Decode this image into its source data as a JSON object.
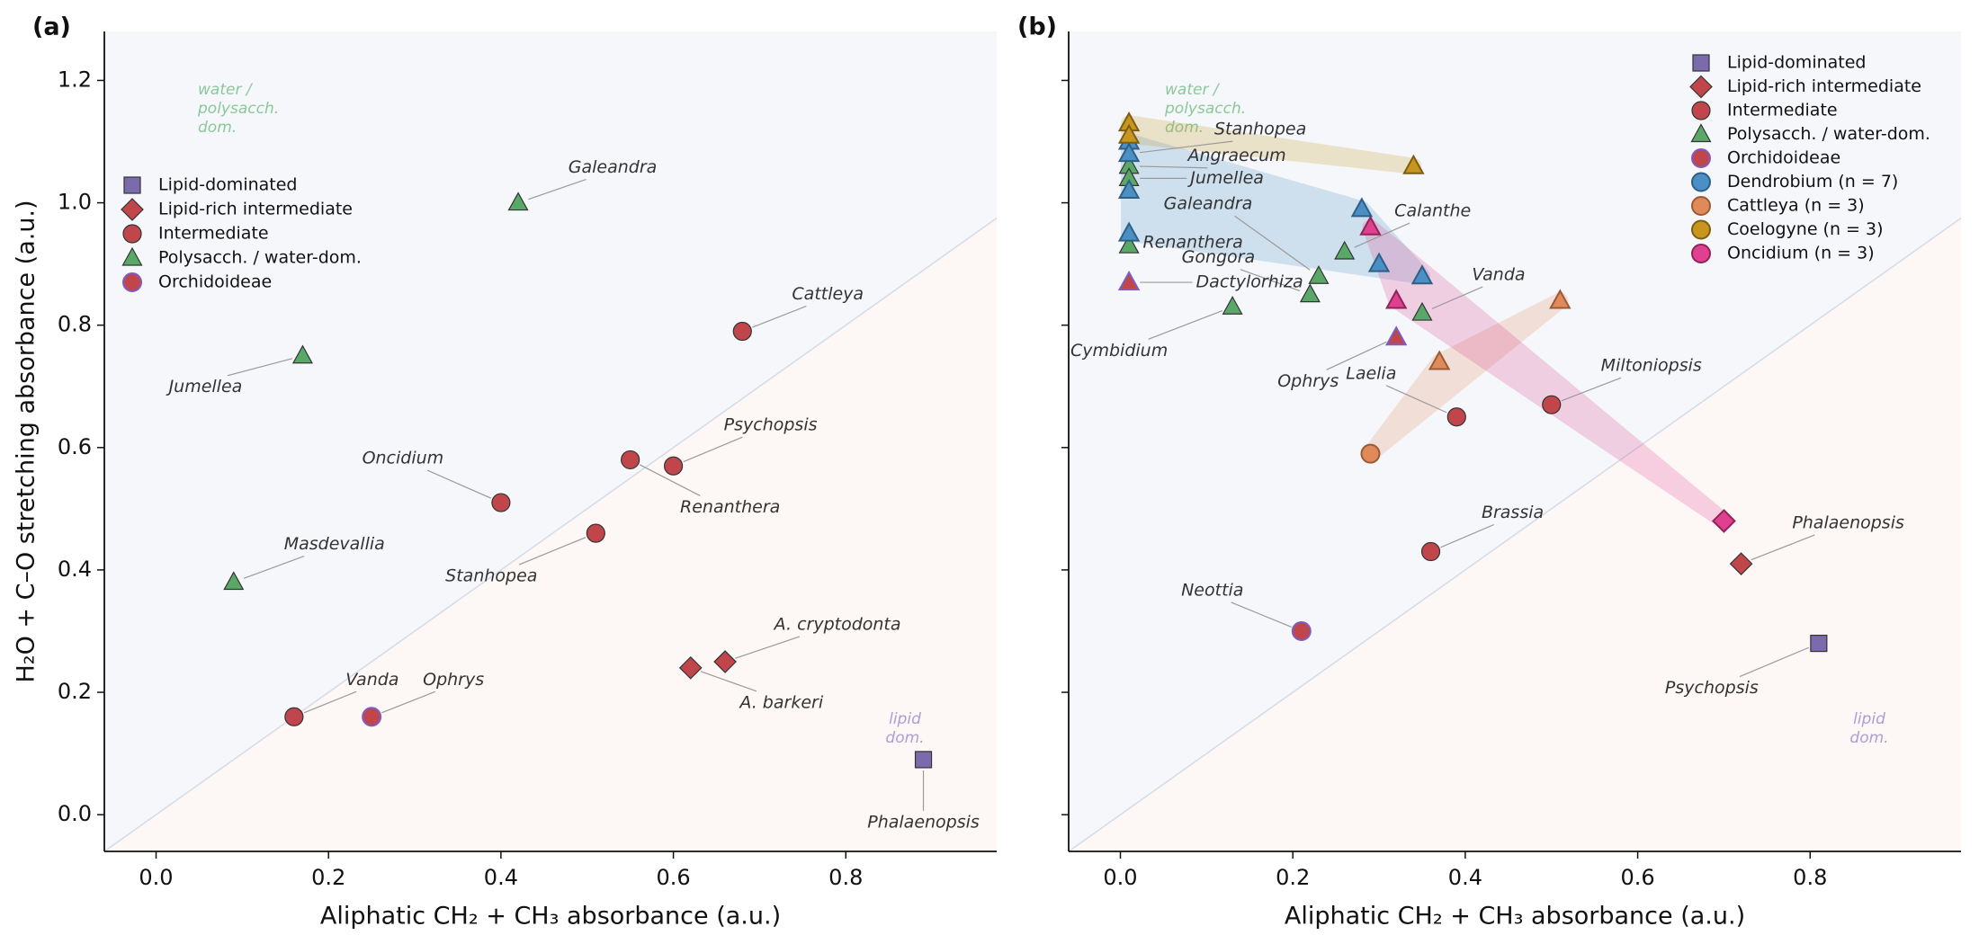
{
  "chart_data": [
    {
      "type": "scatter",
      "panel_label": "(a)",
      "xlabel": "Aliphatic CH₂ + CH₃  absorbance (a.u.)",
      "ylabel": "H₂O + C–O stretching  absorbance (a.u.)",
      "xlim": [
        -0.06,
        0.975
      ],
      "ylim": [
        -0.06,
        1.28
      ],
      "xticks": [
        {
          "value": 0,
          "label": "0.0"
        },
        0.2,
        0.4,
        0.6,
        0.8
      ],
      "yticks": [
        {
          "value": 0,
          "label": "0.0"
        },
        0.2,
        0.4,
        0.6,
        0.8,
        {
          "value": 1,
          "label": "1.0"
        },
        1.2
      ],
      "show_ytick_labels": true,
      "legend": "upper left",
      "annotations": [
        {
          "lines": [
            "water /",
            "polysacch.",
            "dom."
          ],
          "color": "#8cc79a"
        },
        {
          "lines": [
            "lipid",
            "dom."
          ],
          "color": "#ab9fd6"
        }
      ],
      "series": [
        {
          "name": "Lipid-dominated",
          "color": "#7b6bad",
          "edge": "#333333",
          "marker": "square",
          "x": [
            0.89
          ],
          "values": [
            0.09
          ],
          "labels": [
            "Phalaenopsis"
          ]
        },
        {
          "name": "Lipid-rich intermediate",
          "color": "#c0464b",
          "edge": "#333333",
          "marker": "diamond",
          "x": [
            0.66,
            0.62
          ],
          "values": [
            0.25,
            0.24
          ],
          "labels": [
            "A. cryptodonta",
            "A. barkeri"
          ]
        },
        {
          "name": "Intermediate",
          "color": "#c0464b",
          "edge": "#333333",
          "marker": "circle",
          "x": [
            0.68,
            0.6,
            0.55,
            0.4,
            0.51,
            0.16
          ],
          "values": [
            0.79,
            0.57,
            0.58,
            0.51,
            0.46,
            0.16
          ],
          "labels": [
            "Cattleya",
            "Psychopsis",
            "Renanthera",
            "Oncidium",
            "Stanhopea",
            "Vanda"
          ]
        },
        {
          "name": "Polysacch. / water-dom.",
          "color": "#5aa867",
          "edge": "#333333",
          "marker": "triangle",
          "x": [
            0.42,
            0.17,
            0.09
          ],
          "values": [
            1.0,
            0.75,
            0.38
          ],
          "labels": [
            "Galeandra",
            "Jumellea",
            "Masdevallia"
          ]
        },
        {
          "name": "Orchidoideae",
          "color": "#c0464b",
          "edge": "#7d5cc6",
          "marker": "circle",
          "x": [
            0.25
          ],
          "values": [
            0.16
          ],
          "labels": [
            "Ophrys"
          ]
        }
      ]
    },
    {
      "type": "scatter",
      "panel_label": "(b)",
      "xlabel": "Aliphatic CH₂ + CH₃  absorbance (a.u.)",
      "xlim": [
        -0.06,
        0.975
      ],
      "ylim": [
        -0.06,
        1.28
      ],
      "xticks": [
        {
          "value": 0,
          "label": "0.0"
        },
        0.2,
        0.4,
        0.6,
        0.8
      ],
      "yticks": [
        0,
        0.2,
        0.4,
        0.6,
        0.8,
        1,
        1.2
      ],
      "show_ytick_labels": false,
      "legend": "upper right",
      "annotations": [
        {
          "lines": [
            "water /",
            "polysacch.",
            "dom."
          ],
          "color": "#8cc79a"
        },
        {
          "lines": [
            "lipid",
            "dom."
          ],
          "color": "#ab9fd6"
        }
      ],
      "series": [
        {
          "name": "Lipid-dominated",
          "color": "#7b6bad",
          "edge": "#333333",
          "marker": "square",
          "x": [
            0.81
          ],
          "values": [
            0.28
          ],
          "labels": [
            "Psychopsis"
          ]
        },
        {
          "name": "Lipid-rich intermediate",
          "color": "#c0464b",
          "edge": "#333333",
          "marker": "diamond",
          "x": [
            0.72
          ],
          "values": [
            0.41
          ],
          "labels": [
            "Phalaenopsis"
          ]
        },
        {
          "name": "Intermediate",
          "color": "#c0464b",
          "edge": "#333333",
          "marker": "circle",
          "x": [
            0.5,
            0.39,
            0.36
          ],
          "values": [
            0.67,
            0.65,
            0.43
          ],
          "labels": [
            "Miltoniopsis",
            "Laelia",
            "Brassia"
          ]
        },
        {
          "name": "Polysacch. / water-dom.",
          "color": "#5aa867",
          "edge": "#333333",
          "marker": "triangle",
          "x": [
            0.01,
            0.01,
            0.01,
            0.01,
            0.13,
            0.22,
            0.23,
            0.26,
            0.35
          ],
          "values": [
            1.08,
            1.06,
            1.04,
            0.93,
            0.83,
            0.85,
            0.88,
            0.92,
            0.82
          ],
          "labels": [
            "Stanhopea",
            "Angraecum",
            "Jumellea",
            "Renanthera",
            "Cymbidium",
            "Gongora",
            "Galeandra",
            "Calanthe",
            "Vanda"
          ]
        },
        {
          "name": "Orchidoideae",
          "color": "#c0464b",
          "edge": "#7d5cc6",
          "marker": "circle",
          "markers": [
            "triangle",
            "triangle",
            "circle"
          ],
          "x": [
            0.01,
            0.32,
            0.21
          ],
          "values": [
            0.87,
            0.78,
            0.3
          ],
          "labels": [
            "Dactylorhiza",
            "Ophrys",
            "Neottia"
          ]
        },
        {
          "name": "Dendrobium (n = 7)",
          "color": "#4a90c4",
          "edge": "#2f5f86",
          "marker": "circle",
          "markers": [
            "triangle",
            "triangle",
            "triangle",
            "triangle",
            "triangle",
            "triangle",
            "triangle"
          ],
          "hull": true,
          "x": [
            0.01,
            0.01,
            0.01,
            0.01,
            0.28,
            0.3,
            0.35
          ],
          "values": [
            1.1,
            1.08,
            1.02,
            0.95,
            0.99,
            0.9,
            0.88
          ]
        },
        {
          "name": "Cattleya (n = 3)",
          "color": "#e08a5a",
          "edge": "#9a5a36",
          "marker": "circle",
          "markers": [
            "triangle",
            "triangle",
            "circle"
          ],
          "hull": true,
          "x": [
            0.51,
            0.37,
            0.29
          ],
          "values": [
            0.84,
            0.74,
            0.59
          ]
        },
        {
          "name": "Coelogyne (n = 3)",
          "color": "#c8961e",
          "edge": "#7d5d12",
          "marker": "circle",
          "markers": [
            "triangle",
            "triangle",
            "triangle"
          ],
          "hull": true,
          "x": [
            0.01,
            0.01,
            0.34
          ],
          "values": [
            1.13,
            1.11,
            1.06
          ]
        },
        {
          "name": "Oncidium (n = 3)",
          "color": "#e0408f",
          "edge": "#8f2459",
          "marker": "circle",
          "markers": [
            "triangle",
            "triangle",
            "diamond"
          ],
          "hull": true,
          "x": [
            0.29,
            0.32,
            0.7
          ],
          "values": [
            0.96,
            0.84,
            0.48
          ]
        }
      ]
    }
  ]
}
